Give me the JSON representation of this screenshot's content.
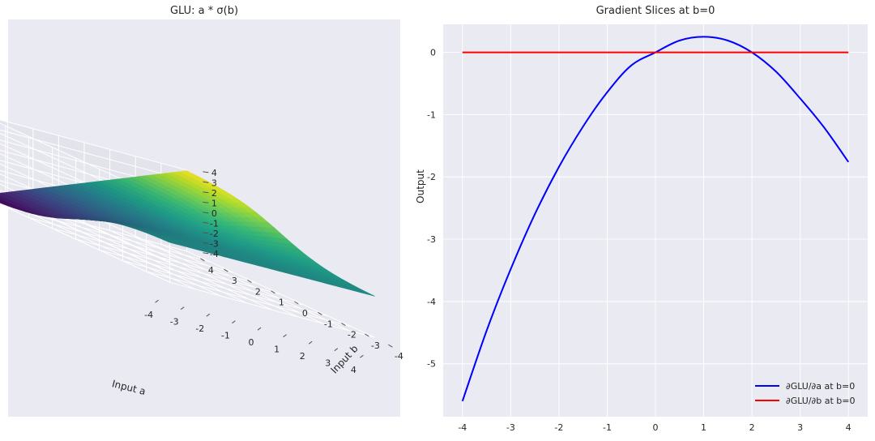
{
  "chart_data": [
    {
      "type": "surface3d",
      "title": "GLU: a * σ(b)",
      "xlabel": "Input a",
      "ylabel": "Input b",
      "zlabel": "",
      "xlim": [
        -4,
        4
      ],
      "ylim": [
        -4,
        4
      ],
      "zlim": [
        -4,
        4
      ],
      "xticks": [
        "-4",
        "-3",
        "-2",
        "-1",
        "0",
        "1",
        "2",
        "3",
        "4"
      ],
      "yticks": [
        "-4",
        "-3",
        "-2",
        "-1",
        "0",
        "1",
        "2",
        "3",
        "4"
      ],
      "zticks": [
        "-4",
        "-3",
        "-2",
        "-1",
        "0",
        "1",
        "2",
        "3",
        "4"
      ],
      "colormap": "viridis",
      "grid": true,
      "surface_z_corners": {
        "a=-4,b=-4": -0.07,
        "a=4,b=-4": 0.07,
        "a=-4,b=4": -3.93,
        "a=4,b=4": 3.93
      }
    },
    {
      "type": "line",
      "title": "Gradient Slices at b=0",
      "xlabel": "",
      "ylabel": "Output",
      "xlim": [
        -4.4,
        4.4
      ],
      "ylim": [
        -5.85,
        0.45
      ],
      "xticks": [
        "-4",
        "-3",
        "-2",
        "-1",
        "0",
        "1",
        "2",
        "3",
        "4"
      ],
      "yticks": [
        "0",
        "-1",
        "-2",
        "-3",
        "-4",
        "-5"
      ],
      "grid": true,
      "legend_position": "lower-right",
      "x": [
        -4,
        -3.5,
        -3,
        -2.5,
        -2,
        -1.5,
        -1,
        -0.5,
        0,
        0.5,
        1,
        1.5,
        2,
        2.5,
        3,
        3.5,
        4
      ],
      "series": [
        {
          "name": "∂GLU/∂a at b=0",
          "color": "#0000ff",
          "values": [
            -5.6,
            -4.47,
            -3.48,
            -2.6,
            -1.84,
            -1.19,
            -0.64,
            -0.21,
            0.0,
            0.19,
            0.25,
            0.19,
            0.0,
            -0.31,
            -0.74,
            -1.21,
            -1.76
          ]
        },
        {
          "name": "∂GLU/∂b at b=0",
          "color": "#ff0000",
          "values": [
            0,
            0,
            0,
            0,
            0,
            0,
            0,
            0,
            0,
            0,
            0,
            0,
            0,
            0,
            0,
            0,
            0
          ]
        }
      ]
    }
  ]
}
